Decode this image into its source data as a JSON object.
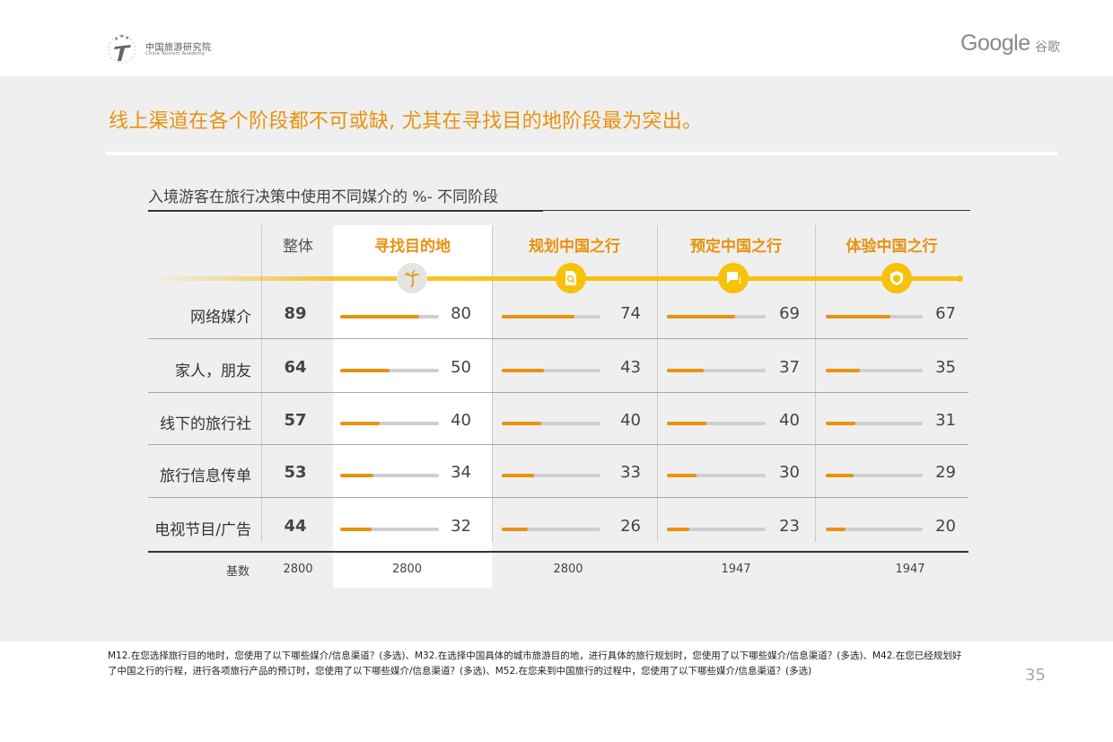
{
  "brand": {
    "academy_cn": "中国旅游研究院",
    "academy_en": "China Tourism Academy",
    "google": "Google",
    "google_cn": "谷歌"
  },
  "headline": "线上渠道在各个阶段都不可或缺, 尤其在寻找目的地阶段最为突出。",
  "colors": {
    "accent": "#e8920e",
    "timeline": "#f6c20a",
    "track": "#cfcfcf",
    "panel": "#efefef"
  },
  "chart_data": {
    "type": "table",
    "title": "入境游客在旅行决策中使用不同媒介的 %- 不同阶段",
    "overall_header": "整体",
    "stages": [
      {
        "name": "寻找目的地",
        "icon": "palm-tree-icon"
      },
      {
        "name": "规划中国之行",
        "icon": "search-document-icon"
      },
      {
        "name": "预定中国之行",
        "icon": "chat-bubble-icon"
      },
      {
        "name": "体验中国之行",
        "icon": "shield-icon"
      }
    ],
    "rows": [
      {
        "label": "网络媒介",
        "overall": 89,
        "values": [
          80,
          74,
          69,
          67
        ]
      },
      {
        "label": "家人，朋友",
        "overall": 64,
        "values": [
          50,
          43,
          37,
          35
        ]
      },
      {
        "label": "线下的旅行社",
        "overall": 57,
        "values": [
          40,
          40,
          40,
          31
        ]
      },
      {
        "label": "旅行信息传单",
        "overall": 53,
        "values": [
          34,
          33,
          30,
          29
        ]
      },
      {
        "label": "电视节目/广告",
        "overall": 44,
        "values": [
          32,
          26,
          23,
          20
        ]
      }
    ],
    "base_label": "基数",
    "base": {
      "overall": 2800,
      "stages": [
        2800,
        2800,
        1947,
        1947
      ]
    },
    "bar_max": 100
  },
  "footnote": "M12.在您选择旅行目的地时，您使用了以下哪些媒介/信息渠道？(多选)、M32.在选择中国具体的城市旅游目的地，进行具体的旅行规划时，您使用了以下哪些媒介/信息渠道？(多选)、M42.在您已经规划好了中国之行的行程，进行各项旅行产品的预订时，您使用了以下哪些媒介/信息渠道？(多选)、M52.在您来到中国旅行的过程中，您使用了以下哪些媒介/信息渠道？(多选)",
  "page_number": "35"
}
